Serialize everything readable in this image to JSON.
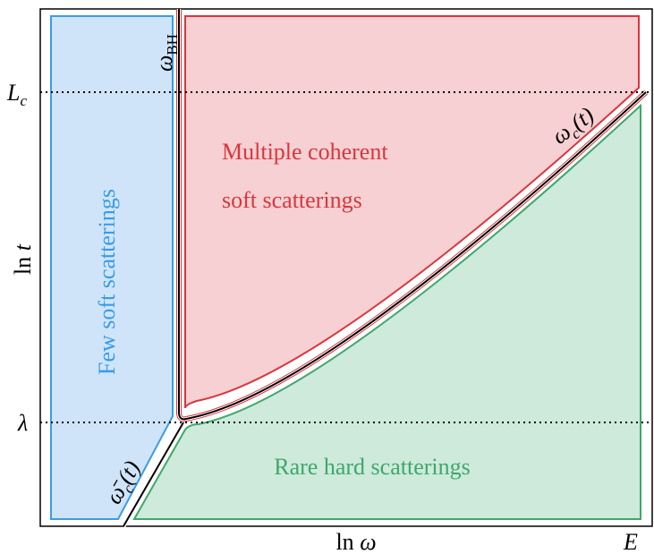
{
  "axes": {
    "y_label": {
      "main": "ln",
      "var": "t"
    },
    "x_label": {
      "main": "ln",
      "var": "ω"
    },
    "x_end": "E",
    "y_marks": [
      {
        "main": "L",
        "sub": "c"
      },
      {
        "main": "λ"
      }
    ]
  },
  "curves": {
    "bh": {
      "main": "ω",
      "sub": "BH"
    },
    "coherent": {
      "main": "ω",
      "sub": "c",
      "tail": "(t)"
    },
    "low": {
      "main": "ω̄",
      "sub": "c",
      "tail": "(t)"
    }
  },
  "regions": {
    "few": "Few soft scatterings",
    "multiple": [
      "Multiple coherent",
      "soft scatterings"
    ],
    "rare": "Rare hard scatterings"
  }
}
